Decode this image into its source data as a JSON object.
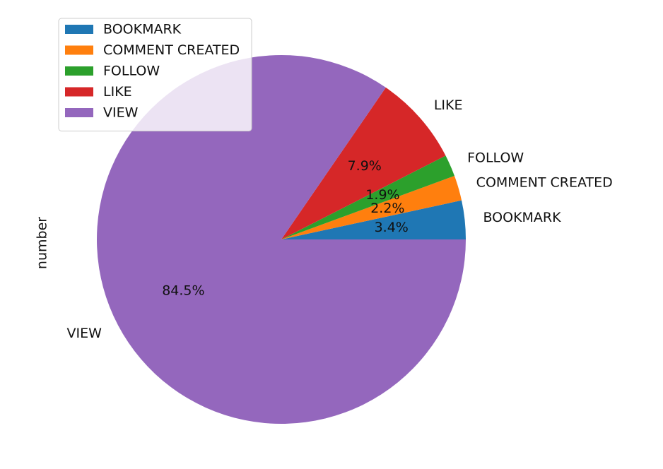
{
  "chart_data": {
    "type": "pie",
    "ylabel": "number",
    "categories": [
      "BOOKMARK",
      "COMMENT CREATED",
      "FOLLOW",
      "LIKE",
      "VIEW"
    ],
    "values": [
      3.4,
      2.2,
      1.9,
      7.9,
      84.5
    ],
    "percent_labels": [
      "3.4%",
      "2.2%",
      "1.9%",
      "7.9%",
      "84.5%"
    ],
    "colors": [
      "#1f77b4",
      "#ff7f0e",
      "#2ca02c",
      "#d62728",
      "#9467bd"
    ],
    "legend": {
      "placement": "upper-left",
      "entries": [
        "BOOKMARK",
        "COMMENT CREATED",
        "FOLLOW",
        "LIKE",
        "VIEW"
      ]
    },
    "start_angle": 0,
    "direction": "counterclockwise"
  }
}
